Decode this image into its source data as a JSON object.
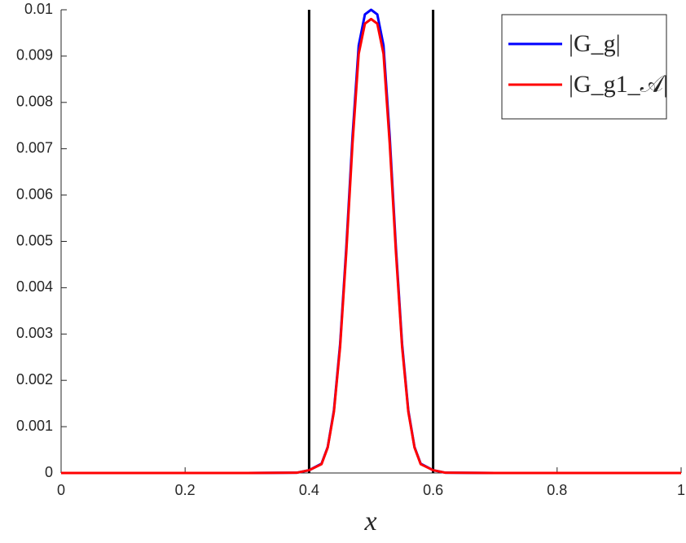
{
  "chart_data": {
    "type": "line",
    "x": [
      0,
      0.1,
      0.2,
      0.3,
      0.38,
      0.4,
      0.42,
      0.43,
      0.44,
      0.45,
      0.46,
      0.47,
      0.48,
      0.49,
      0.5,
      0.51,
      0.52,
      0.53,
      0.54,
      0.55,
      0.56,
      0.57,
      0.58,
      0.6,
      0.62,
      0.7,
      0.8,
      0.9,
      1
    ],
    "series": [
      {
        "name": "|G_g|",
        "color": "#0000ff",
        "values": [
          0,
          0,
          0,
          0,
          6e-06,
          6e-05,
          0.0002,
          0.00056,
          0.00135,
          0.00278,
          0.00487,
          0.00726,
          0.00923,
          0.0099,
          0.01,
          0.0099,
          0.00923,
          0.00726,
          0.00487,
          0.00278,
          0.00135,
          0.00056,
          0.0002,
          6e-05,
          6e-06,
          0,
          0,
          0,
          0
        ]
      },
      {
        "name": "|G_g1_𝒜|",
        "color": "#ff0000",
        "values": [
          0,
          0,
          0,
          0,
          6e-06,
          6e-05,
          0.00019,
          0.00055,
          0.00132,
          0.00272,
          0.00477,
          0.00711,
          0.00905,
          0.0097,
          0.0098,
          0.0097,
          0.00905,
          0.00711,
          0.00477,
          0.00272,
          0.00132,
          0.00055,
          0.00019,
          6e-05,
          6e-06,
          0,
          0,
          0,
          0
        ]
      }
    ],
    "vlines": [
      0.4,
      0.6
    ],
    "vline_color": "#000000",
    "xlabel": "x",
    "xlim": [
      0,
      1
    ],
    "xticks": [
      0,
      0.2,
      0.4,
      0.6,
      0.8,
      1
    ],
    "ylim": [
      0,
      0.01
    ],
    "yticks": [
      0,
      0.001,
      0.002,
      0.003,
      0.004,
      0.005,
      0.006,
      0.007,
      0.008,
      0.009,
      0.01
    ],
    "legend": "upper right"
  }
}
